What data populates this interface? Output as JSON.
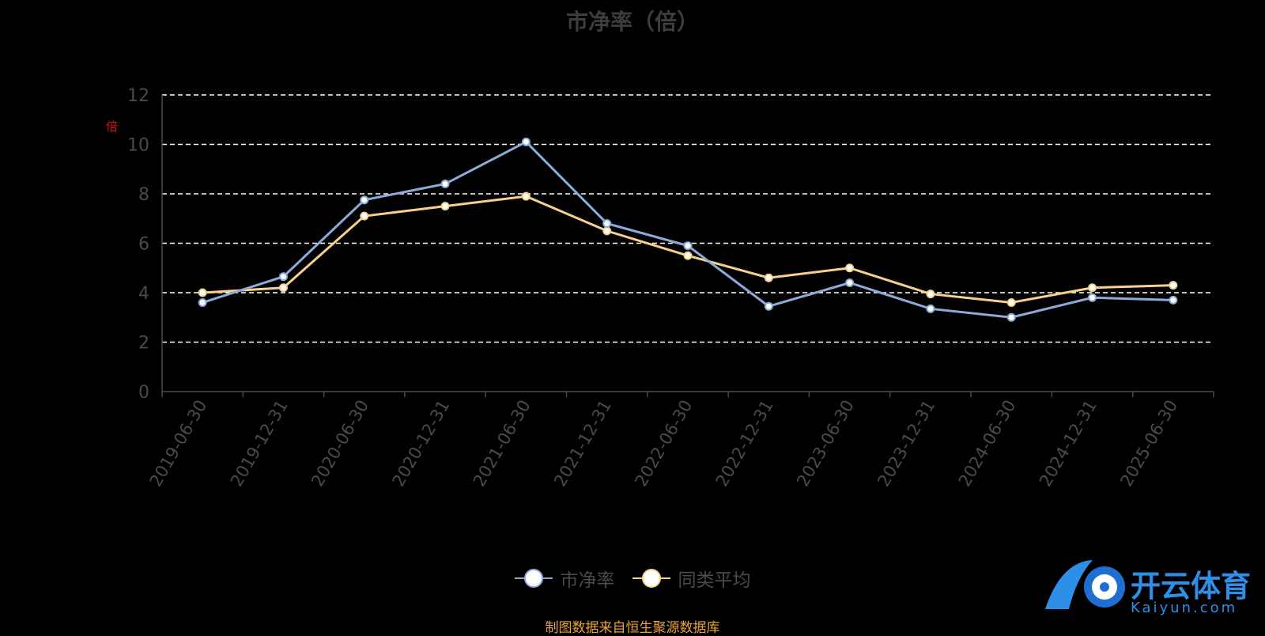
{
  "chart_data": {
    "type": "line",
    "title": "市净率（倍）",
    "y_unit": "倍",
    "categories": [
      "2019-06-30",
      "2019-12-31",
      "2020-06-30",
      "2020-12-31",
      "2021-06-30",
      "2021-12-31",
      "2022-06-30",
      "2022-12-31",
      "2023-06-30",
      "2023-12-31",
      "2024-06-30",
      "2024-12-31",
      "2025-06-30"
    ],
    "series": [
      {
        "name": "市净率",
        "color": "#8cabd9",
        "values": [
          3.6,
          4.65,
          7.75,
          8.4,
          10.1,
          6.8,
          5.9,
          3.45,
          4.4,
          3.35,
          3.0,
          3.8,
          3.7
        ]
      },
      {
        "name": "同类平均",
        "color": "#f5d18c",
        "values": [
          4.0,
          4.2,
          7.1,
          7.5,
          7.9,
          6.5,
          5.5,
          4.6,
          5.0,
          3.95,
          3.6,
          4.2,
          4.3
        ]
      }
    ],
    "ylim": [
      0,
      12
    ],
    "yticks": [
      0,
      2,
      4,
      6,
      8,
      10,
      12
    ],
    "grid": true,
    "legend_position": "bottom"
  },
  "source_note": "制图数据来自恒生聚源数据库",
  "brand": {
    "name": "开云体育",
    "sub": "Kaiyun.com"
  }
}
